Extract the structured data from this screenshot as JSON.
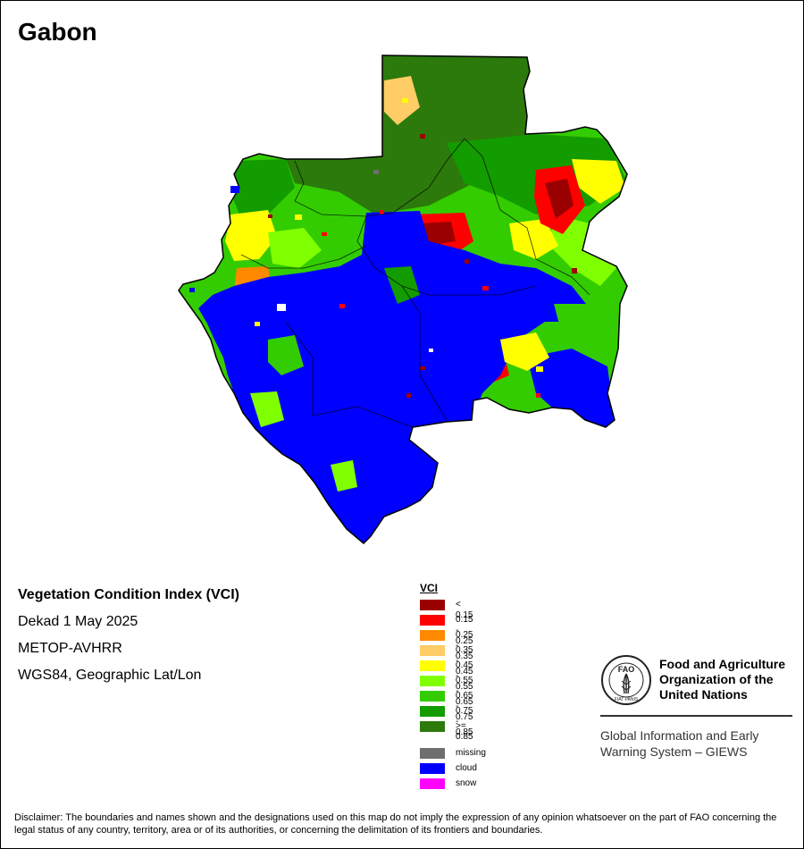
{
  "map": {
    "country": "Gabon",
    "info": {
      "title": "Vegetation Condition Index (VCI)",
      "date": "Dekad 1 May 2025",
      "sensor": "METOP-AVHRR",
      "projection": "WGS84, Geographic Lat/Lon"
    }
  },
  "legend": {
    "title": "VCI",
    "items": [
      {
        "label": "< 0.15",
        "color": "#9b0000"
      },
      {
        "label": "0.15 - 0.25",
        "color": "#ff0000"
      },
      {
        "label": "0.25 - 0.35",
        "color": "#ff8a00"
      },
      {
        "label": "0.35 - 0.45",
        "color": "#ffcc66"
      },
      {
        "label": "0.45 - 0.55",
        "color": "#ffff00"
      },
      {
        "label": "0.55 - 0.65",
        "color": "#80ff00"
      },
      {
        "label": "0.65 - 0.75",
        "color": "#33cc00"
      },
      {
        "label": "0.75 - 0.85",
        "color": "#139c00"
      },
      {
        "label": ">= 0.85",
        "color": "#2b7a0b"
      }
    ],
    "extra": [
      {
        "label": "missing",
        "color": "#6e6e6e"
      },
      {
        "label": "cloud",
        "color": "#0000ff"
      },
      {
        "label": "snow",
        "color": "#ff00ff"
      }
    ]
  },
  "org": {
    "logo_letters": "FAO",
    "logo_motto": "FIAT PANIS",
    "name_line1": "Food and Agriculture",
    "name_line2": "Organization of the",
    "name_line3": "United Nations",
    "giews_line1": "Global Information and Early",
    "giews_line2": "Warning System – GIEWS"
  },
  "disclaimer": "Disclaimer: The boundaries and names shown and the designations used on this map do not imply the expression of any opinion whatsoever on the part of FAO concerning the legal status of any country, territory, area or of its authorities, or concerning the delimitation of its frontiers and boundaries."
}
